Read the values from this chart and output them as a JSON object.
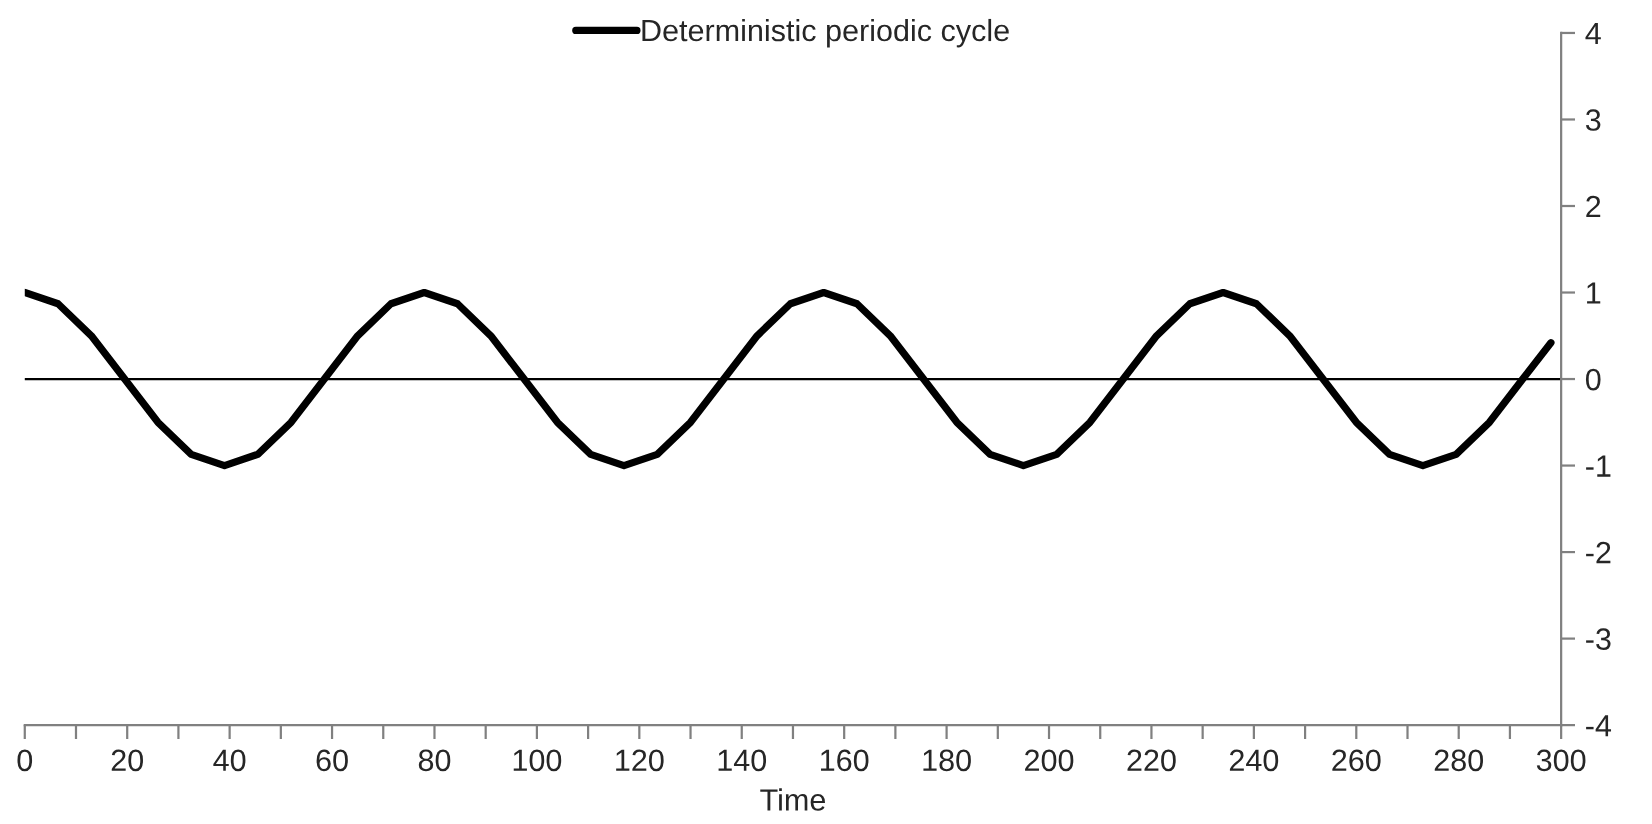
{
  "chart_data": {
    "type": "line",
    "xlabel": "Time",
    "x": [
      0,
      6.5,
      13,
      19.5,
      26,
      32.5,
      39,
      45.5,
      52,
      58.5,
      65,
      71.5,
      78,
      84.5,
      91,
      97.5,
      104,
      110.5,
      117,
      123.5,
      130,
      136.5,
      143,
      149.5,
      156,
      162.5,
      169,
      175.5,
      182,
      188.5,
      195,
      201.5,
      208,
      214.5,
      221,
      227.5,
      234,
      240.5,
      247,
      253.5,
      260,
      266.5,
      273,
      279.5,
      286,
      292.5,
      298
    ],
    "series": [
      {
        "name": "Deterministic periodic cycle",
        "color": "#000000",
        "values": [
          1,
          0.87,
          0.5,
          0,
          -0.5,
          -0.87,
          -1,
          -0.87,
          -0.5,
          0,
          0.5,
          0.87,
          1,
          0.87,
          0.5,
          0,
          -0.5,
          -0.87,
          -1,
          -0.87,
          -0.5,
          0,
          0.5,
          0.87,
          1,
          0.87,
          0.5,
          0,
          -0.5,
          -0.87,
          -1,
          -0.87,
          -0.5,
          0,
          0.5,
          0.87,
          1,
          0.87,
          0.5,
          0,
          -0.5,
          -0.87,
          -1,
          -0.87,
          -0.5,
          0,
          0.42
        ]
      }
    ],
    "xlim": [
      0,
      300
    ],
    "xticks": [
      0,
      {
        "value": 10,
        "label": null
      },
      20,
      {
        "value": 30,
        "label": null
      },
      40,
      {
        "value": 50,
        "label": null
      },
      60,
      {
        "value": 70,
        "label": null
      },
      80,
      {
        "value": 90,
        "label": null
      },
      100,
      {
        "value": 110,
        "label": null
      },
      120,
      {
        "value": 130,
        "label": null
      },
      140,
      {
        "value": 150,
        "label": null
      },
      160,
      {
        "value": 170,
        "label": null
      },
      180,
      {
        "value": 190,
        "label": null
      },
      200,
      {
        "value": 210,
        "label": null
      },
      220,
      {
        "value": 230,
        "label": null
      },
      240,
      {
        "value": 250,
        "label": null
      },
      260,
      {
        "value": 270,
        "label": null
      },
      280,
      {
        "value": 290,
        "label": null
      },
      300
    ],
    "ylim": [
      -4,
      4
    ],
    "yticks": [
      -4,
      -3,
      -2,
      -1,
      0,
      1,
      2,
      3,
      4
    ],
    "ref_lines": [
      {
        "axis": "y",
        "value": 0,
        "color": "#000000"
      }
    ],
    "legend": "top",
    "grid": false,
    "marker": "none",
    "line_style": "solid"
  }
}
